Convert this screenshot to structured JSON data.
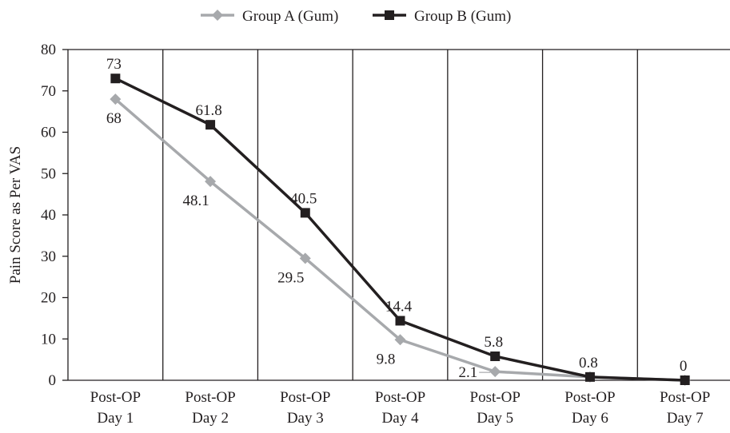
{
  "chart_data": {
    "type": "line",
    "title": "",
    "xlabel": "",
    "ylabel": "Pain Score as Per VAS",
    "ylim": [
      0,
      80
    ],
    "yticks": [
      0,
      10,
      20,
      30,
      40,
      50,
      60,
      70,
      80
    ],
    "grid": "vertical lines between categories",
    "legend_position": "top-center",
    "categories": [
      [
        "Post-OP",
        "Day 1"
      ],
      [
        "Post-OP",
        "Day 2"
      ],
      [
        "Post-OP",
        "Day 3"
      ],
      [
        "Post-OP",
        "Day 4"
      ],
      [
        "Post-OP",
        "Day 5"
      ],
      [
        "Post-OP",
        "Day 6"
      ],
      [
        "Post-OP",
        "Day 7"
      ]
    ],
    "series": [
      {
        "name": "Group A (Gum)",
        "color": "#a7a9ac",
        "marker": "diamond",
        "values": [
          68,
          48.1,
          29.5,
          9.8,
          2.1,
          0.8,
          0
        ],
        "labels": [
          "68",
          "48.1",
          "29.5",
          "9.8",
          "2.1",
          "",
          ""
        ]
      },
      {
        "name": "Group B (Gum)",
        "color": "#231f20",
        "marker": "square",
        "values": [
          73,
          61.8,
          40.5,
          14.4,
          5.8,
          0.8,
          0
        ],
        "labels": [
          "73",
          "61.8",
          "40.5",
          "14.4",
          "5.8",
          "0.8",
          "0"
        ]
      }
    ]
  }
}
